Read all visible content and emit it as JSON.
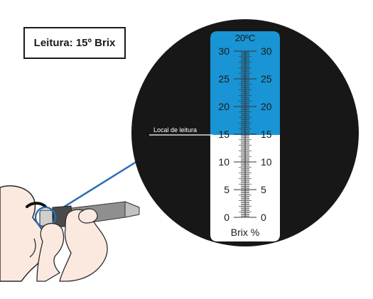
{
  "reading_label": "Leitura: 15º Brix",
  "scale": {
    "temperature": "20ºC",
    "unit": "Brix %",
    "reading_line_label": "Local de leitura",
    "min": 0,
    "max": 30,
    "labeled_ticks": [
      "0",
      "5",
      "10",
      "15",
      "20",
      "25",
      "30"
    ],
    "reading_value": 15
  },
  "colors": {
    "lens_background": "#171717",
    "blue_field": "#1994d4",
    "white_field": "#ffffff",
    "tick": "#333333",
    "line_to_lens": "#2a6db5",
    "skin": "#fbe9e0",
    "instrument": "#8f8f8f"
  }
}
